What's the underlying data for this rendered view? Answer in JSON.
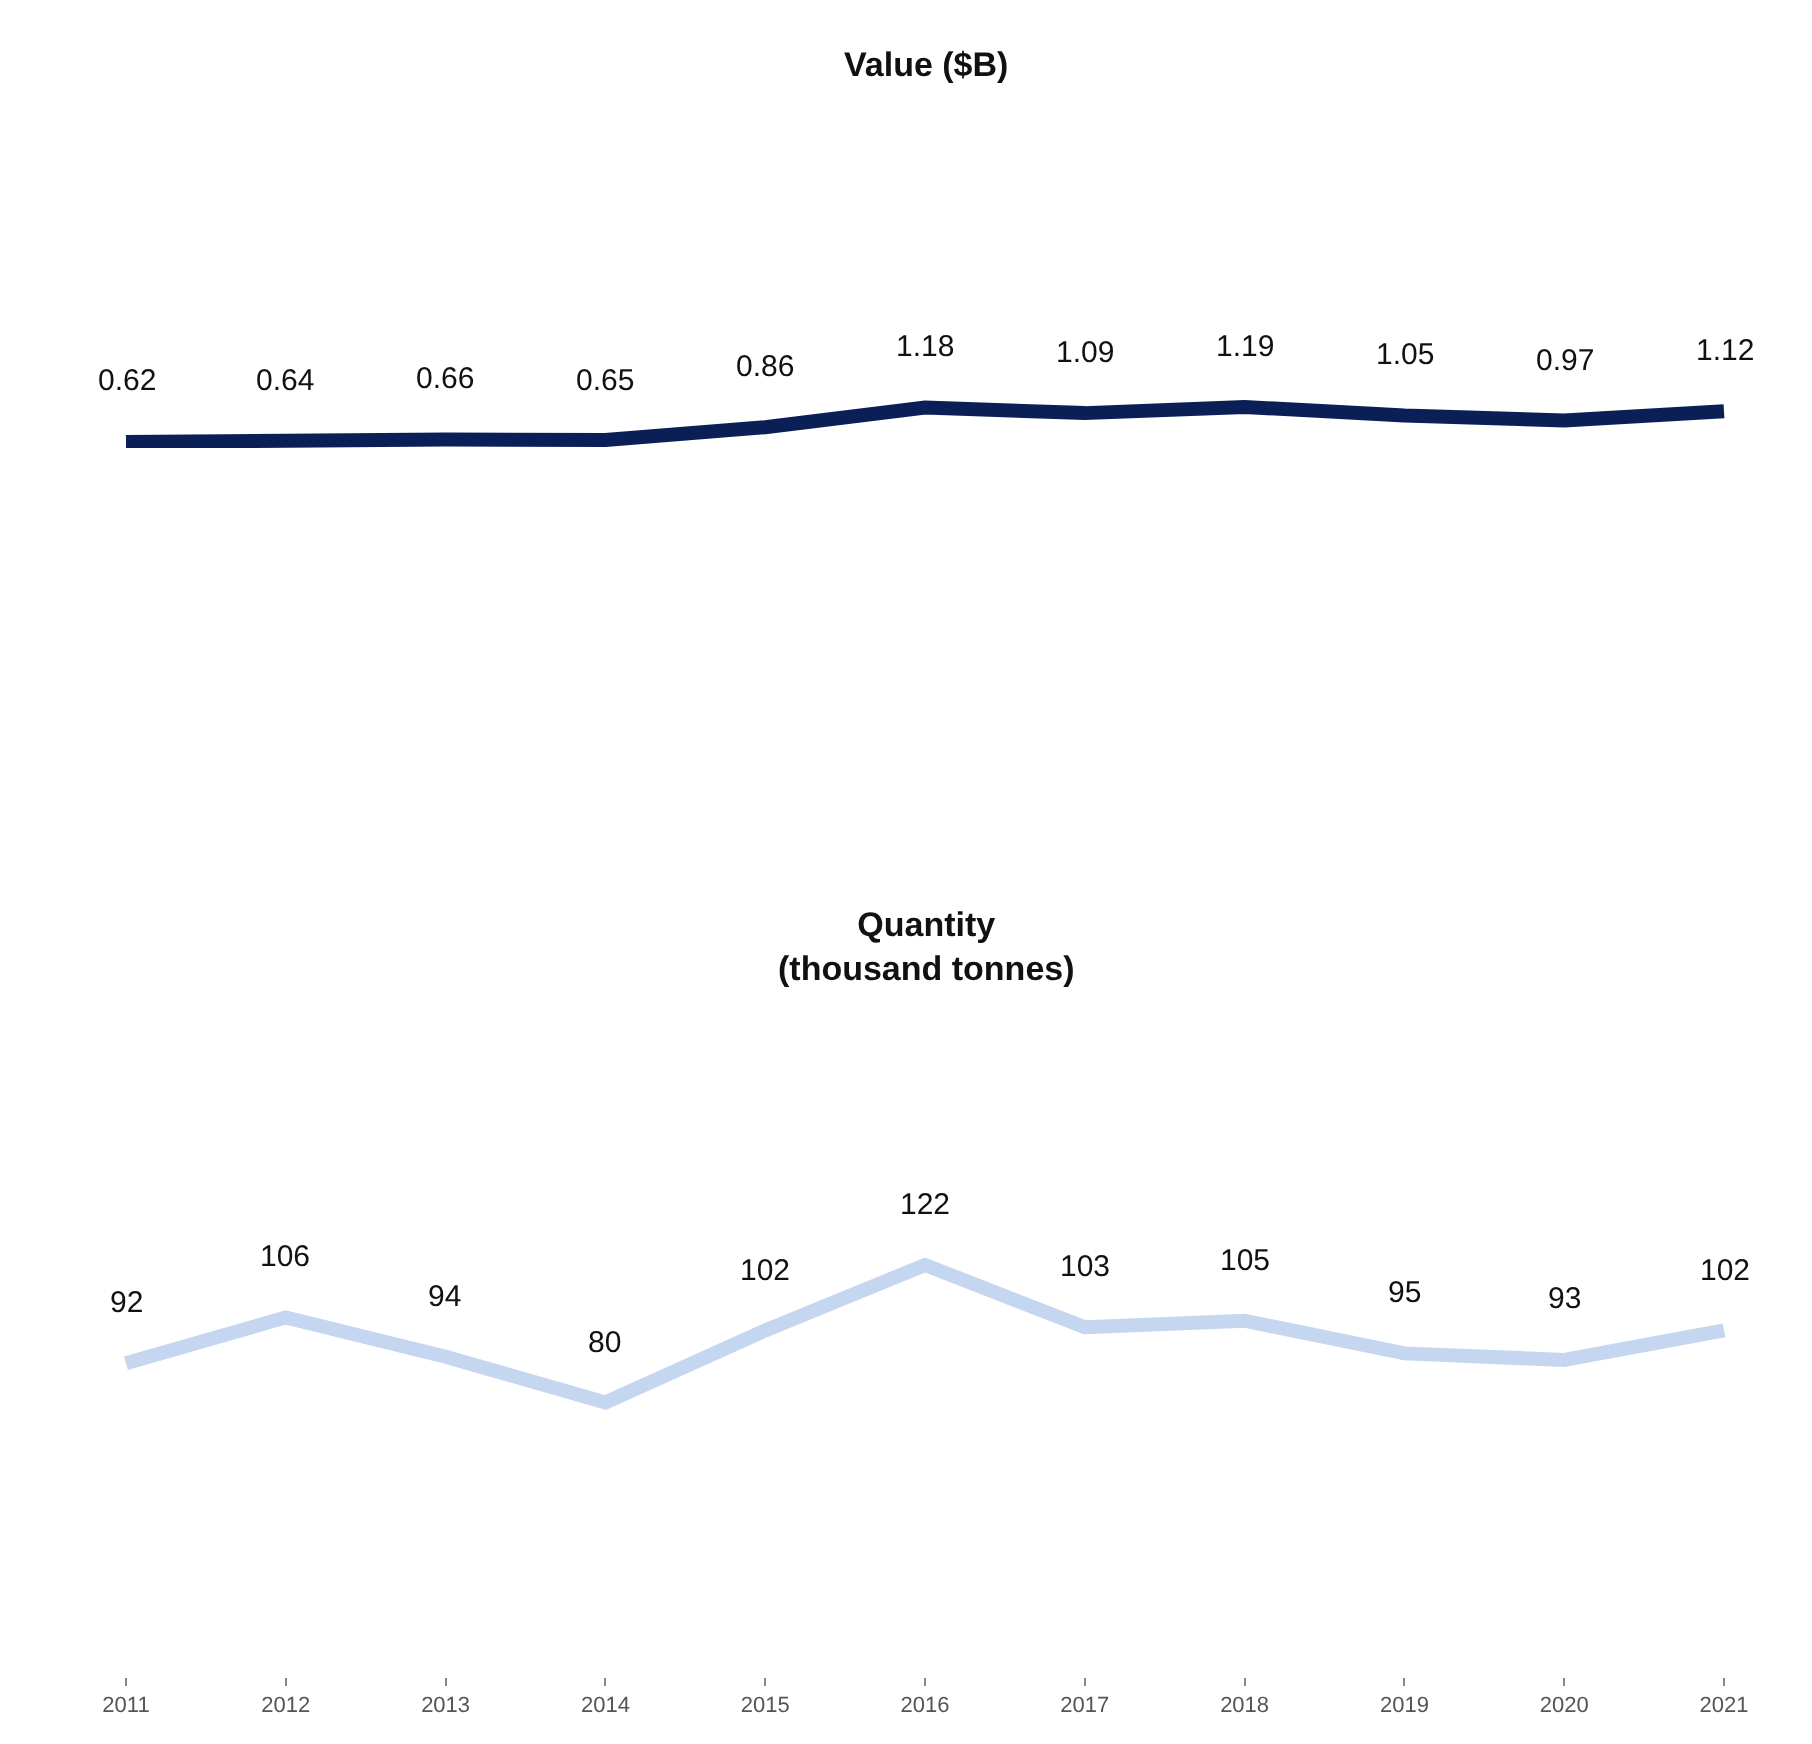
{
  "chart_data": [
    {
      "type": "line",
      "title": "Value ($B)",
      "categories": [
        "2011",
        "2012",
        "2013",
        "2014",
        "2015",
        "2016",
        "2017",
        "2018",
        "2019",
        "2020",
        "2021"
      ],
      "series": [
        {
          "color": "#0b1f57",
          "values": [
            0.62,
            0.64,
            0.66,
            0.65,
            0.86,
            1.18,
            1.09,
            1.19,
            1.05,
            0.97,
            1.12
          ]
        }
      ],
      "data_labels": true,
      "tick_labels": false
    },
    {
      "type": "line",
      "title": "Quantity\n(thousand tonnes)",
      "categories": [
        "2011",
        "2012",
        "2013",
        "2014",
        "2015",
        "2016",
        "2017",
        "2018",
        "2019",
        "2020",
        "2021"
      ],
      "series": [
        {
          "color": "#c5d7f0",
          "values": [
            92,
            106,
            94,
            80,
            102,
            122,
            103,
            105,
            95,
            93,
            102
          ]
        }
      ],
      "data_labels": true,
      "tick_labels": "x"
    }
  ]
}
